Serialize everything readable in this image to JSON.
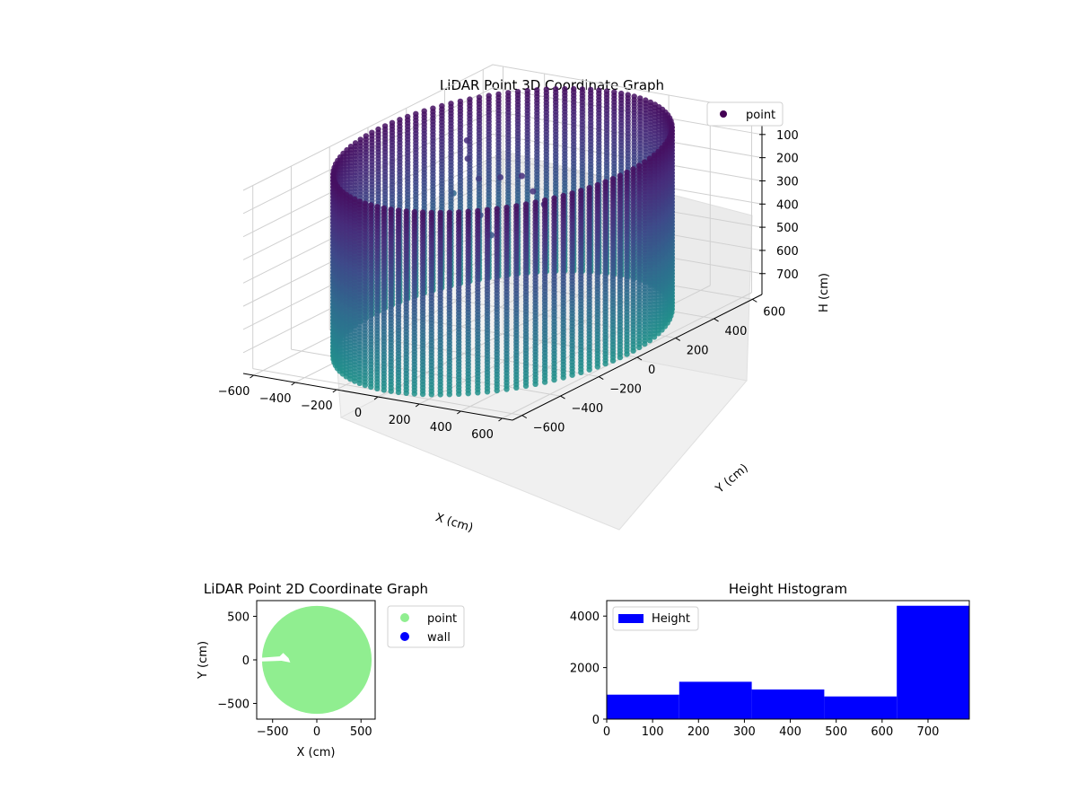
{
  "chart_data": [
    {
      "type": "scatter",
      "projection": "3d",
      "title": "LiDAR Point 3D Coordinate Graph",
      "xlabel": "X (cm)",
      "ylabel": "Y (cm)",
      "zlabel": "H (cm)",
      "x_ticks": [
        -600,
        -400,
        -200,
        0,
        200,
        400,
        600
      ],
      "y_ticks": [
        600,
        400,
        200,
        0,
        -200,
        -400,
        -600
      ],
      "z_ticks": [
        0,
        100,
        200,
        300,
        400,
        500,
        600,
        700
      ],
      "xlim": [
        -650,
        650
      ],
      "ylim": [
        -650,
        650
      ],
      "zlim": [
        0,
        790
      ],
      "z_axis_inverted": true,
      "series": [
        {
          "name": "point",
          "color_scale": "viridis (by height)",
          "shape": "cylindrical wall of points centered near origin",
          "radius": 600,
          "height_range": [
            0,
            790
          ],
          "interior_points": [
            {
              "x": -450,
              "y": 300,
              "h": 150
            },
            {
              "x": -400,
              "y": 250,
              "h": 200
            },
            {
              "x": -300,
              "y": 200,
              "h": 250
            },
            {
              "x": -150,
              "y": 150,
              "h": 200
            },
            {
              "x": 0,
              "y": 100,
              "h": 150
            },
            {
              "x": 100,
              "y": 50,
              "h": 180
            },
            {
              "x": 200,
              "y": 0,
              "h": 200
            },
            {
              "x": -200,
              "y": 100,
              "h": 350
            },
            {
              "x": -100,
              "y": 50,
              "h": 400
            },
            {
              "x": -700,
              "y": 500,
              "h": 500
            }
          ]
        }
      ],
      "legend": "top-right",
      "grid": true
    },
    {
      "type": "scatter",
      "title": "LiDAR Point 2D Coordinate Graph",
      "xlabel": "X (cm)",
      "ylabel": "Y (cm)",
      "x_ticks": [
        -500,
        0,
        500
      ],
      "y_ticks": [
        500,
        0,
        -500
      ],
      "xlim": [
        -680,
        660
      ],
      "ylim": [
        -680,
        680
      ],
      "series": [
        {
          "name": "point",
          "color": "#90ee90",
          "shape": "filled disc radius ~620 cm",
          "cx": 0,
          "cy": 0,
          "r": 620
        },
        {
          "name": "wall",
          "color": "#0000ff",
          "shape": "no visible points"
        }
      ],
      "legend": "outside-right",
      "grid": false
    },
    {
      "type": "bar",
      "subtype": "histogram",
      "title": "Height Histogram",
      "xlabel": "",
      "ylabel": "",
      "x_ticks": [
        0,
        100,
        200,
        300,
        400,
        500,
        600,
        700
      ],
      "y_ticks": [
        0,
        2000,
        4000
      ],
      "xlim": [
        0,
        790
      ],
      "ylim": [
        0,
        4600
      ],
      "bin_edges": [
        0,
        158,
        316,
        474,
        632,
        790
      ],
      "values": [
        950,
        1450,
        1150,
        880,
        4400
      ],
      "series": [
        {
          "name": "Height",
          "color": "#0000ff"
        }
      ],
      "legend": "top-left",
      "grid": false
    }
  ]
}
